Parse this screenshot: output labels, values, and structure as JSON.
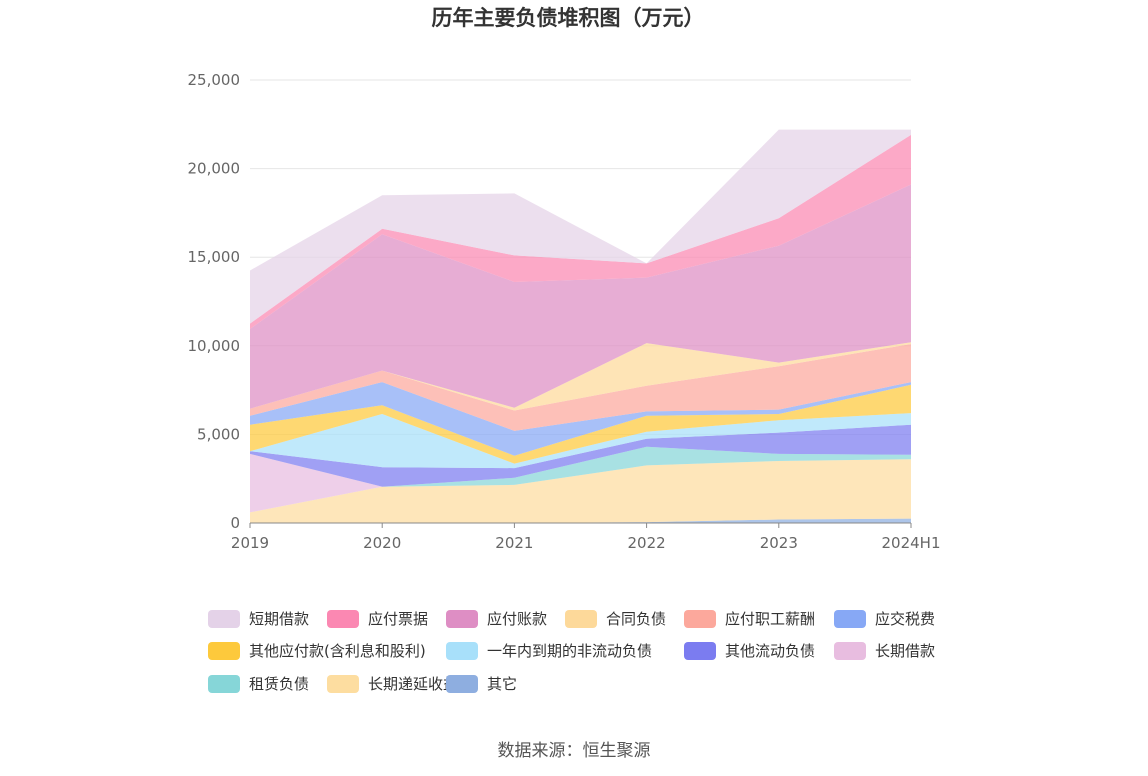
{
  "chart_data": {
    "type": "area",
    "stacked": true,
    "title": "历年主要负债堆积图（万元）",
    "categories": [
      "2019",
      "2020",
      "2021",
      "2022",
      "2023",
      "2024H1"
    ],
    "yticks": [
      "0",
      "5,000",
      "10,000",
      "15,000",
      "20,000",
      "25,000"
    ],
    "ylim": [
      0,
      25000
    ],
    "grid": true,
    "legend_position": "bottom",
    "series": [
      {
        "name": "其它",
        "color": "#8eaee0",
        "values": [
          0,
          0,
          0,
          50,
          200,
          250
        ]
      },
      {
        "name": "长期递延收益",
        "color": "#fddda0",
        "values": [
          600,
          2050,
          2150,
          3200,
          3300,
          3350
        ]
      },
      {
        "name": "租赁负债",
        "color": "#86d6d8",
        "values": [
          0,
          0,
          400,
          1050,
          400,
          250
        ]
      },
      {
        "name": "长期借款",
        "color": "#e8bde0",
        "values": [
          3300,
          0,
          0,
          0,
          0,
          0
        ]
      },
      {
        "name": "其他流动负债",
        "color": "#7b7cf0",
        "values": [
          150,
          1100,
          550,
          450,
          1200,
          1700
        ]
      },
      {
        "name": "一年内到期的非流动负债",
        "color": "#a8e0fa",
        "values": [
          0,
          3000,
          250,
          400,
          700,
          650
        ]
      },
      {
        "name": "其他应付款(含利息和股利)",
        "color": "#fdc93c",
        "values": [
          1500,
          500,
          450,
          900,
          350,
          1600
        ]
      },
      {
        "name": "应交税费",
        "color": "#87a8f5",
        "values": [
          500,
          1300,
          1400,
          250,
          250,
          150
        ]
      },
      {
        "name": "应付职工薪酬",
        "color": "#fca89c",
        "values": [
          400,
          650,
          1150,
          1450,
          2450,
          2150
        ]
      },
      {
        "name": "合同负债",
        "color": "#fdd99a",
        "values": [
          0,
          0,
          150,
          2400,
          200,
          100
        ]
      },
      {
        "name": "应付账款",
        "color": "#de8ec4",
        "values": [
          4500,
          7700,
          7100,
          3700,
          6600,
          8900
        ]
      },
      {
        "name": "应付票据",
        "color": "#fb88b2",
        "values": [
          300,
          300,
          1500,
          800,
          1550,
          2800
        ]
      },
      {
        "name": "短期借款",
        "color": "#e4d2e8",
        "values": [
          3000,
          1900,
          3500,
          0,
          5000,
          300
        ]
      }
    ],
    "legend_order": [
      "短期借款",
      "应付票据",
      "应付账款",
      "合同负债",
      "应付职工薪酬",
      "应交税费",
      "其他应付款(含利息和股利)",
      "一年内到期的非流动负债",
      "其他流动负债",
      "长期借款",
      "租赁负债",
      "长期递延收益",
      "其它"
    ]
  },
  "source": "数据来源：恒生聚源"
}
